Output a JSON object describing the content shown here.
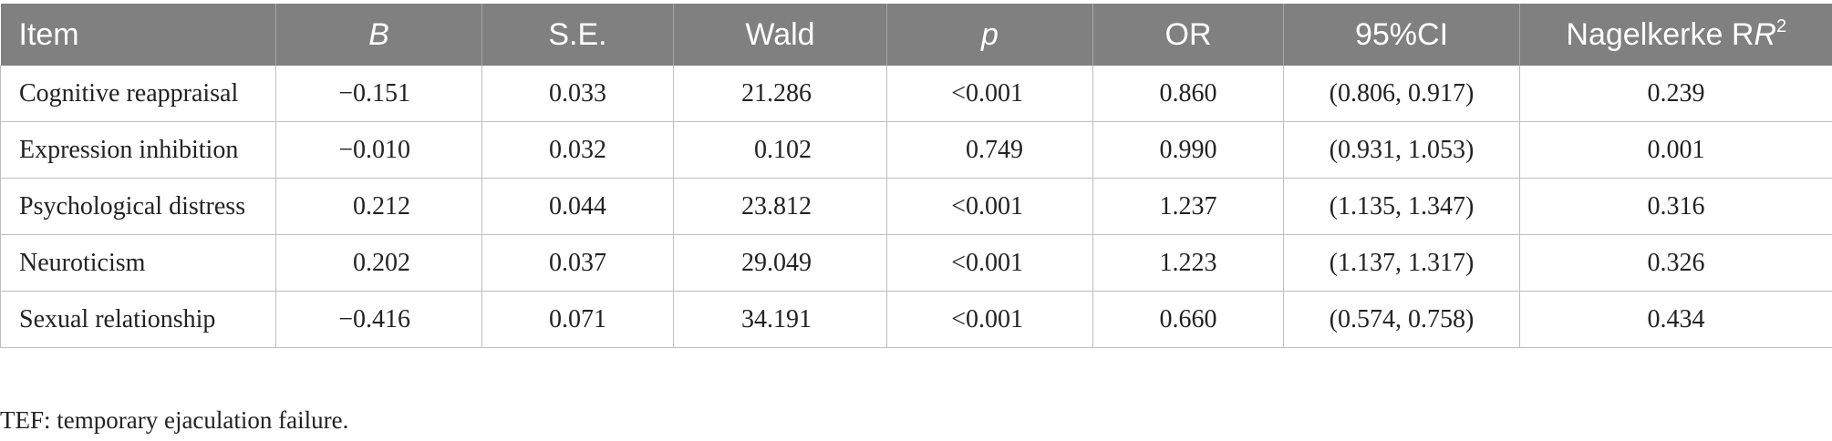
{
  "table": {
    "headers": [
      "Item",
      "B",
      "S.E.",
      "Wald",
      "p",
      "OR",
      "95%CI",
      "Nagelkerke R",
      "2"
    ],
    "rows": [
      [
        "Cognitive reappraisal",
        "−0.151",
        "0.033",
        "21.286",
        "<0.001",
        "0.860",
        "(0.806, 0.917)",
        "0.239"
      ],
      [
        "Expression inhibition",
        "−0.010",
        "0.032",
        "0.102",
        "0.749",
        "0.990",
        "(0.931, 1.053)",
        "0.001"
      ],
      [
        "Psychological distress",
        "0.212",
        "0.044",
        "23.812",
        "<0.001",
        "1.237",
        "(1.135, 1.347)",
        "0.316"
      ],
      [
        "Neuroticism",
        "0.202",
        "0.037",
        "29.049",
        "<0.001",
        "1.223",
        "(1.137, 1.317)",
        "0.326"
      ],
      [
        "Sexual relationship",
        "−0.416",
        "0.071",
        "34.191",
        "<0.001",
        "0.660",
        "(0.574, 0.758)",
        "0.434"
      ]
    ]
  },
  "footnote": "TEF: temporary ejaculation failure."
}
